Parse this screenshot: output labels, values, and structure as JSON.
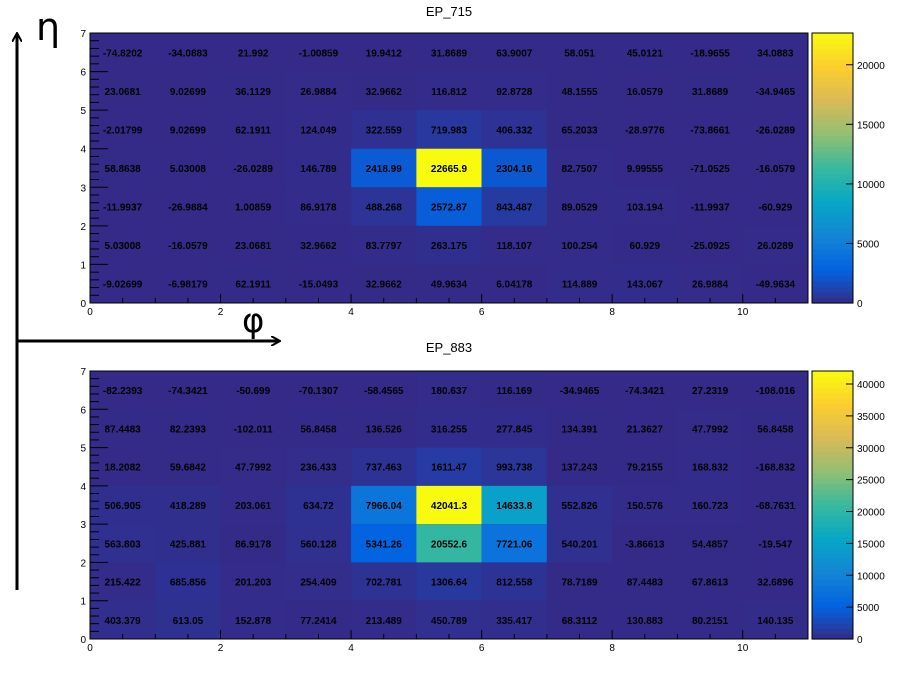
{
  "annotations": {
    "eta_symbol": "η",
    "phi_symbol": "φ"
  },
  "chart_data": [
    {
      "type": "heatmap",
      "title": "EP_715",
      "xlabel": "",
      "ylabel": "",
      "xlim": [
        0,
        11
      ],
      "ylim": [
        0,
        7
      ],
      "x_ticks": [
        0,
        2,
        4,
        6,
        8,
        10
      ],
      "y_ticks": [
        0,
        1,
        2,
        3,
        4,
        5,
        6,
        7
      ],
      "zlim": [
        0,
        22665.9
      ],
      "colorbar_ticks": [
        0,
        5000,
        10000,
        15000,
        20000
      ],
      "grid": false,
      "rows_top_to_bottom": [
        [
          -74.8202,
          -34.0883,
          21.992,
          -1.00859,
          19.9412,
          31.8689,
          63.9007,
          58.051,
          45.0121,
          -18.9655,
          34.0883
        ],
        [
          23.0681,
          9.02699,
          36.1129,
          26.9884,
          32.9662,
          116.812,
          92.8728,
          48.1555,
          16.0579,
          31.8689,
          -34.9465
        ],
        [
          -2.01799,
          9.02699,
          62.1911,
          124.049,
          322.559,
          719.983,
          406.332,
          65.2033,
          -28.9776,
          -73.8661,
          -26.0289
        ],
        [
          58.8638,
          5.03008,
          -26.0289,
          146.789,
          2418.99,
          22665.9,
          2304.16,
          82.7507,
          9.99555,
          -71.0525,
          -16.0579
        ],
        [
          -11.9937,
          -26.9884,
          1.00859,
          86.9178,
          488.268,
          2572.87,
          843.487,
          89.0529,
          103.194,
          -11.9937,
          -60.929
        ],
        [
          5.03008,
          -16.0579,
          23.0681,
          32.9662,
          83.7797,
          263.175,
          118.107,
          100.254,
          60.929,
          -25.0925,
          26.0289
        ],
        [
          -9.02699,
          -6.98179,
          62.1911,
          -15.0493,
          32.9662,
          49.9634,
          6.04178,
          114.889,
          143.067,
          26.9884,
          -49.9634
        ]
      ],
      "labels_top_to_bottom": [
        [
          "-74.8202",
          "-34.0883",
          "21.992",
          "-1.00859",
          "19.9412",
          "31.8689",
          "63.9007",
          "58.051",
          "45.0121",
          "-18.9655",
          "34.0883"
        ],
        [
          "23.0681",
          "9.02699",
          "36.1129",
          "26.9884",
          "32.9662",
          "116.812",
          "92.8728",
          "48.1555",
          "16.0579",
          "31.8689",
          "-34.9465"
        ],
        [
          "-2.01799",
          "9.02699",
          "62.1911",
          "124.049",
          "322.559",
          "719.983",
          "406.332",
          "65.2033",
          "-28.9776",
          "-73.8661",
          "-26.0289"
        ],
        [
          "58.8638",
          "5.03008",
          "-26.0289",
          "146.789",
          "2418.99",
          "22665.9",
          "2304.16",
          "82.7507",
          "9.99555",
          "-71.0525",
          "-16.0579"
        ],
        [
          "-11.9937",
          "-26.9884",
          "1.00859",
          "86.9178",
          "488.268",
          "2572.87",
          "843.487",
          "89.0529",
          "103.194",
          "-11.9937",
          "-60.929"
        ],
        [
          "5.03008",
          "-16.0579",
          "23.0681",
          "32.9662",
          "83.7797",
          "263.175",
          "118.107",
          "100.254",
          "60.929",
          "-25.0925",
          "26.0289"
        ],
        [
          "-9.02699",
          "-6.98179",
          "62.1911",
          "-15.0493",
          "32.9662",
          "49.9634",
          "6.04178",
          "114.889",
          "143.067",
          "26.9884",
          "-49.9634"
        ]
      ],
      "colorbar_palette": [
        "#352a87",
        "#0363e1",
        "#1485d4",
        "#06a7c6",
        "#38b99e",
        "#92bf73",
        "#d9ba56",
        "#fcce2e",
        "#f9fb0e"
      ]
    },
    {
      "type": "heatmap",
      "title": "EP_883",
      "xlabel": "",
      "ylabel": "",
      "xlim": [
        0,
        11
      ],
      "ylim": [
        0,
        7
      ],
      "x_ticks": [
        0,
        2,
        4,
        6,
        8,
        10
      ],
      "y_ticks": [
        0,
        1,
        2,
        3,
        4,
        5,
        6,
        7
      ],
      "zlim": [
        0,
        42041.3
      ],
      "colorbar_ticks": [
        0,
        5000,
        10000,
        15000,
        20000,
        25000,
        30000,
        35000,
        40000
      ],
      "grid": false,
      "rows_top_to_bottom": [
        [
          -82.2393,
          -74.3421,
          -50.699,
          -70.1307,
          -58.4565,
          180.637,
          116.169,
          -34.9465,
          -74.3421,
          27.2319,
          -108.016
        ],
        [
          87.4483,
          82.2393,
          -102.011,
          56.8458,
          136.526,
          316.255,
          277.845,
          134.391,
          21.3627,
          47.7992,
          56.8458
        ],
        [
          18.2082,
          59.6842,
          47.7992,
          236.433,
          737.463,
          1611.47,
          993.738,
          137.243,
          79.2155,
          168.832,
          -168.832
        ],
        [
          506.905,
          418.289,
          203.061,
          634.72,
          7966.04,
          42041.3,
          14633.8,
          552.826,
          150.576,
          160.723,
          -68.7631
        ],
        [
          563.803,
          425.881,
          86.9178,
          560.128,
          5341.26,
          20552.6,
          7721.06,
          540.201,
          -3.86613,
          54.4857,
          -19.547
        ],
        [
          215.422,
          685.856,
          201.203,
          254.409,
          702.781,
          1306.64,
          812.558,
          78.7189,
          87.4483,
          67.8613,
          32.6896
        ],
        [
          403.379,
          613.05,
          152.878,
          77.2414,
          213.489,
          450.789,
          335.417,
          68.3112,
          130.883,
          80.2151,
          140.135
        ]
      ],
      "labels_top_to_bottom": [
        [
          "-82.2393",
          "-74.3421",
          "-50.699",
          "-70.1307",
          "-58.4565",
          "180.637",
          "116.169",
          "-34.9465",
          "-74.3421",
          "27.2319",
          "-108.016"
        ],
        [
          "87.4483",
          "82.2393",
          "-102.011",
          "56.8458",
          "136.526",
          "316.255",
          "277.845",
          "134.391",
          "21.3627",
          "47.7992",
          "56.8458"
        ],
        [
          "18.2082",
          "59.6842",
          "47.7992",
          "236.433",
          "737.463",
          "1611.47",
          "993.738",
          "137.243",
          "79.2155",
          "168.832",
          "-168.832"
        ],
        [
          "506.905",
          "418.289",
          "203.061",
          "634.72",
          "7966.04",
          "42041.3",
          "14633.8",
          "552.826",
          "150.576",
          "160.723",
          "-68.7631"
        ],
        [
          "563.803",
          "425.881",
          "86.9178",
          "560.128",
          "5341.26",
          "20552.6",
          "7721.06",
          "540.201",
          "-3.86613",
          "54.4857",
          "-19.547"
        ],
        [
          "215.422",
          "685.856",
          "201.203",
          "254.409",
          "702.781",
          "1306.64",
          "812.558",
          "78.7189",
          "87.4483",
          "67.8613",
          "32.6896"
        ],
        [
          "403.379",
          "613.05",
          "152.878",
          "77.2414",
          "213.489",
          "450.789",
          "335.417",
          "68.3112",
          "130.883",
          "80.2151",
          "140.135"
        ]
      ],
      "colorbar_palette": [
        "#352a87",
        "#0363e1",
        "#1485d4",
        "#06a7c6",
        "#38b99e",
        "#92bf73",
        "#d9ba56",
        "#fcce2e",
        "#f9fb0e"
      ]
    }
  ]
}
